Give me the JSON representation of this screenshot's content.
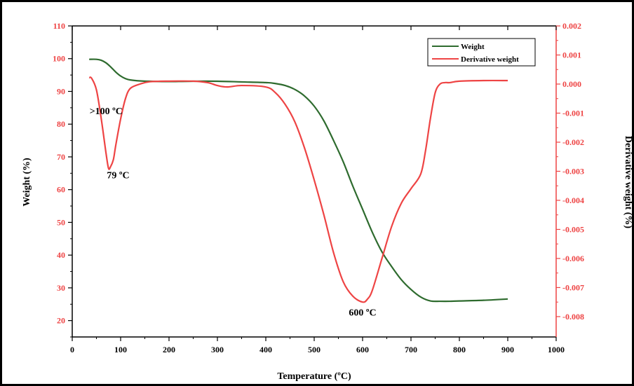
{
  "chart_data": {
    "type": "line",
    "title": "",
    "xlabel": "Temperature (ºC)",
    "ylabel": "Weight (%)",
    "y2label": "Derivative weight (%)",
    "xlim": [
      0,
      1000
    ],
    "ylim": [
      15,
      110
    ],
    "y2lim": [
      -0.0087,
      0.002
    ],
    "x_ticks": [
      "0",
      "100",
      "200",
      "300",
      "400",
      "500",
      "600",
      "700",
      "800",
      "900",
      "1000"
    ],
    "y_ticks": [
      "20",
      "30",
      "40",
      "50",
      "60",
      "70",
      "80",
      "90",
      "100",
      "110"
    ],
    "y2_ticks": [
      "0.002",
      "0.001",
      "0.000",
      "-0.001",
      "-0.002",
      "-0.003",
      "-0.004",
      "-0.005",
      "-0.006",
      "-0.007",
      "-0.008"
    ],
    "grid": false,
    "legend_position": "top-right",
    "series": [
      {
        "name": "Weight",
        "axis": "left",
        "color": "#2e6b2e",
        "x": [
          35,
          50,
          60,
          70,
          80,
          90,
          100,
          110,
          120,
          140,
          160,
          200,
          250,
          300,
          350,
          400,
          420,
          440,
          460,
          480,
          500,
          520,
          540,
          560,
          580,
          600,
          620,
          640,
          660,
          680,
          700,
          720,
          740,
          760,
          780,
          800,
          850,
          900
        ],
        "values": [
          99.8,
          99.8,
          99.5,
          98.7,
          97.4,
          95.9,
          94.7,
          93.9,
          93.5,
          93.2,
          93.1,
          93.0,
          93.1,
          93.1,
          92.9,
          92.7,
          92.4,
          91.8,
          90.6,
          88.6,
          85.5,
          81.0,
          75.0,
          68.5,
          61.0,
          54.0,
          47.0,
          41.0,
          36.5,
          32.5,
          29.5,
          27.2,
          26.0,
          25.9,
          25.9,
          26.0,
          26.2,
          26.6
        ]
      },
      {
        "name": "Derivative weight",
        "axis": "right",
        "color": "#ee4444",
        "x": [
          35,
          40,
          50,
          60,
          70,
          75,
          79,
          85,
          90,
          100,
          110,
          120,
          140,
          160,
          200,
          250,
          280,
          300,
          320,
          350,
          400,
          420,
          440,
          460,
          480,
          500,
          520,
          540,
          560,
          580,
          600,
          610,
          620,
          640,
          660,
          680,
          700,
          720,
          730,
          740,
          750,
          760,
          770,
          780,
          800,
          850,
          900
        ],
        "values": [
          0.00022,
          0.0002,
          -0.0002,
          -0.0012,
          -0.0024,
          -0.0029,
          -0.00285,
          -0.0026,
          -0.0021,
          -0.0012,
          -0.0005,
          -0.00015,
          0.0,
          8e-05,
          0.0001,
          0.0001,
          5e-05,
          -5e-05,
          -0.0001,
          -5e-05,
          -0.0001,
          -0.0003,
          -0.0007,
          -0.0013,
          -0.0022,
          -0.0033,
          -0.0045,
          -0.0058,
          -0.0068,
          -0.0073,
          -0.0075,
          -0.0074,
          -0.0071,
          -0.006,
          -0.0049,
          -0.0041,
          -0.0036,
          -0.0031,
          -0.0023,
          -0.0012,
          -0.0003,
          0.0,
          5e-05,
          5e-05,
          0.0001,
          0.00012,
          0.00012
        ]
      }
    ],
    "annotations": [
      {
        "text": ">100 ºC",
        "x": 70,
        "y": 83
      },
      {
        "text": "79 ºC",
        "x": 95,
        "y": 63.5
      },
      {
        "text": "600 ºC",
        "x": 600,
        "y": 21.5
      }
    ]
  }
}
